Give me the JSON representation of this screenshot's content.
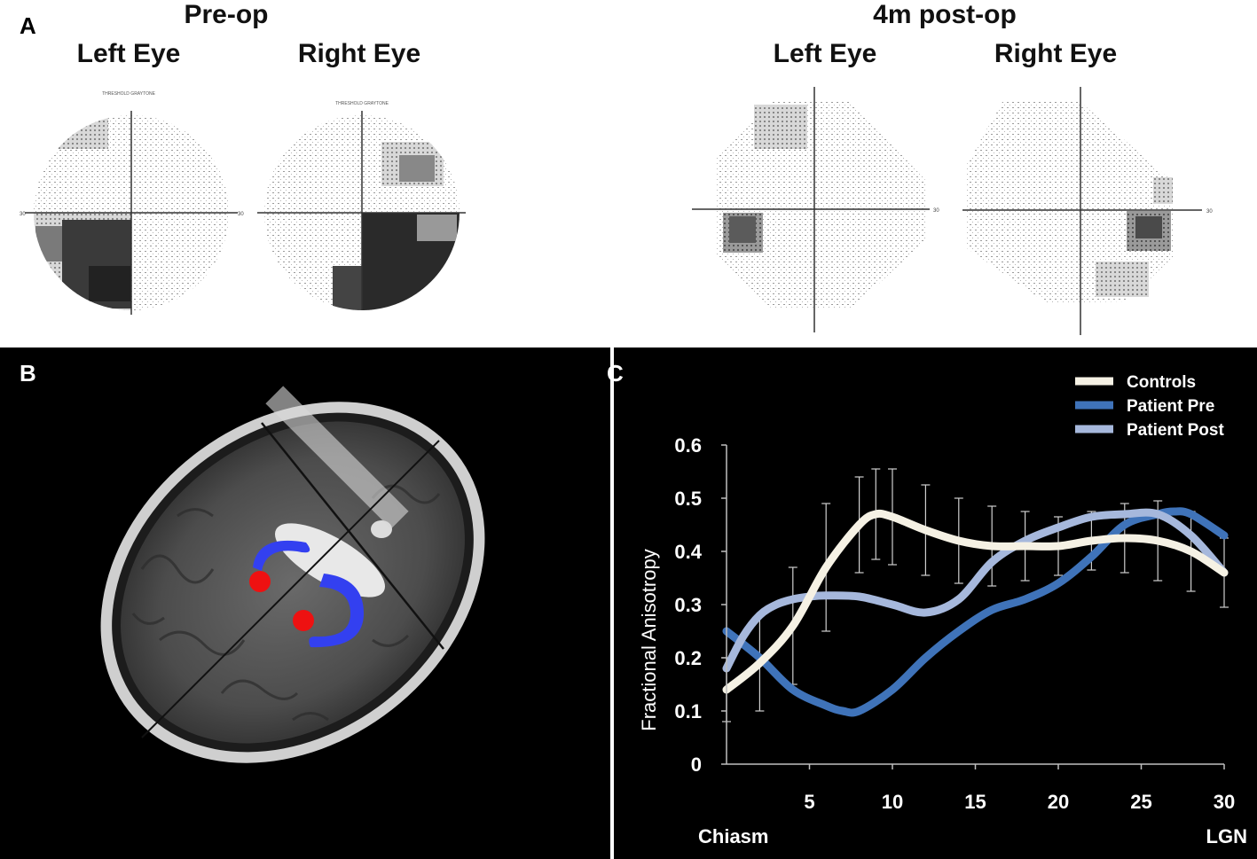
{
  "panel_a": {
    "letter": "A",
    "preop_title": "Pre-op",
    "postop_title": "4m post-op",
    "left_eye": "Left Eye",
    "right_eye": "Right Eye",
    "chart_caption": "THRESHOLD GRAYTONE",
    "axis_label": "30"
  },
  "panel_b": {
    "letter": "B"
  },
  "panel_c": {
    "letter": "C"
  },
  "colors": {
    "controls": "#f5f1e4",
    "patient_pre": "#3f73b9",
    "patient_post": "#a6b8dc",
    "tract": "#3340f0",
    "lgn": "#ee1111"
  },
  "chart_data": {
    "type": "line",
    "title": "",
    "xlabel_left": "Chiasm",
    "xlabel_right": "LGN",
    "ylabel": "Fractional Anisotropy",
    "xlim": [
      0,
      30
    ],
    "ylim": [
      0,
      0.6
    ],
    "xticks": [
      5,
      10,
      15,
      20,
      25,
      30
    ],
    "yticks": [
      0,
      0.1,
      0.2,
      0.3,
      0.4,
      0.5,
      0.6
    ],
    "ytick_labels": [
      "0",
      "0.1",
      "0.2",
      "0.3",
      "0.4",
      "0.5",
      "0.6"
    ],
    "legend_position": "top-right",
    "series": [
      {
        "name": "Controls",
        "x": [
          0,
          2,
          4,
          6,
          8,
          9,
          10,
          12,
          14,
          16,
          18,
          20,
          22,
          24,
          26,
          28,
          30
        ],
        "values": [
          0.14,
          0.19,
          0.26,
          0.37,
          0.45,
          0.47,
          0.465,
          0.44,
          0.42,
          0.41,
          0.41,
          0.41,
          0.42,
          0.425,
          0.42,
          0.4,
          0.36
        ],
        "error": [
          0.06,
          0.09,
          0.11,
          0.12,
          0.09,
          0.085,
          0.09,
          0.085,
          0.08,
          0.075,
          0.065,
          0.055,
          0.055,
          0.065,
          0.075,
          0.075,
          0.065
        ]
      },
      {
        "name": "Patient Pre",
        "x": [
          0,
          2,
          4,
          6,
          7,
          8,
          10,
          12,
          14,
          16,
          18,
          20,
          22,
          24,
          26,
          27,
          28,
          30
        ],
        "values": [
          0.25,
          0.2,
          0.14,
          0.11,
          0.1,
          0.1,
          0.14,
          0.2,
          0.25,
          0.29,
          0.31,
          0.34,
          0.39,
          0.45,
          0.47,
          0.475,
          0.47,
          0.43
        ]
      },
      {
        "name": "Patient Post",
        "x": [
          0,
          1,
          2,
          3,
          4,
          5,
          6,
          8,
          10,
          12,
          14,
          16,
          18,
          20,
          22,
          24,
          26,
          28,
          30
        ],
        "values": [
          0.18,
          0.24,
          0.28,
          0.3,
          0.31,
          0.315,
          0.317,
          0.315,
          0.3,
          0.285,
          0.31,
          0.38,
          0.42,
          0.445,
          0.465,
          0.47,
          0.47,
          0.43,
          0.36
        ]
      }
    ]
  }
}
